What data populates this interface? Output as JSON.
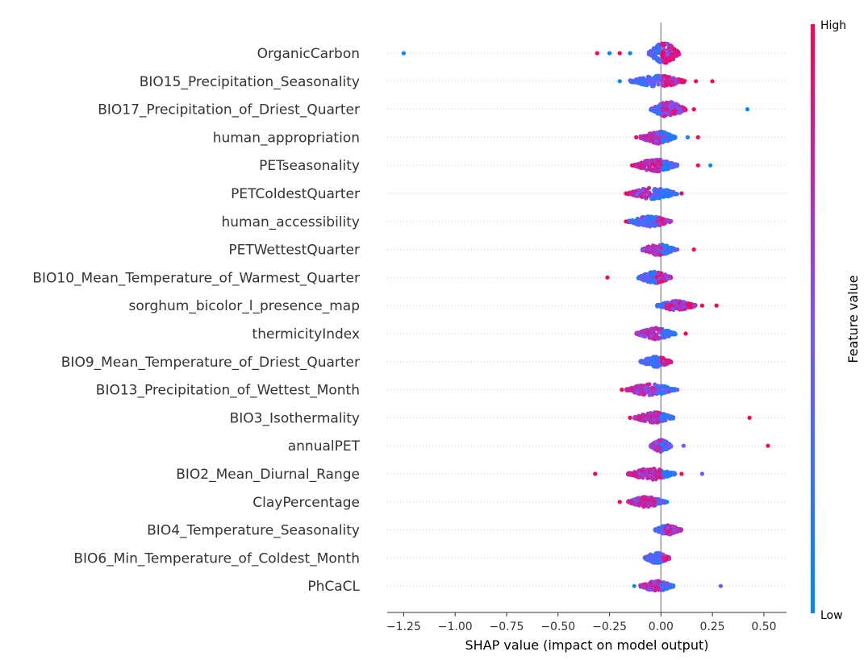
{
  "chart_data": {
    "type": "scatter",
    "subtype": "shap-beeswarm",
    "xlabel": "SHAP value (impact on model output)",
    "xlim": [
      -1.33,
      0.61
    ],
    "xticks": [
      -1.25,
      -1.0,
      -0.75,
      -0.5,
      -0.25,
      0.0,
      0.25,
      0.5
    ],
    "xtick_labels": [
      "−1.25",
      "−1.00",
      "−0.75",
      "−0.50",
      "−0.25",
      "0.00",
      "0.25",
      "0.50"
    ],
    "colorbar": {
      "label": "Feature value",
      "high": "High",
      "low": "Low"
    },
    "colors": {
      "low": "#008afb",
      "high": "#ff0052",
      "zero_line": "#999999",
      "grid": "#cccccc"
    },
    "features": [
      {
        "name": "OrganicCarbon",
        "min": -0.06,
        "max": 0.09,
        "spread": 1.0,
        "split": 0.0,
        "lowSide": "left",
        "outliers": [
          [
            -1.25,
            0.0
          ],
          [
            -0.31,
            1.0
          ],
          [
            -0.25,
            0.0
          ],
          [
            -0.2,
            1.0
          ],
          [
            -0.15,
            0.0
          ]
        ]
      },
      {
        "name": "BIO15_Precipitation_Seasonality",
        "min": -0.15,
        "max": 0.12,
        "spread": 0.55,
        "split": 0.0,
        "lowSide": "left",
        "outliers": [
          [
            -0.2,
            0.0
          ],
          [
            0.17,
            1.0
          ],
          [
            0.25,
            1.0
          ]
        ]
      },
      {
        "name": "BIO17_Precipitation_of_Driest_Quarter",
        "min": -0.05,
        "max": 0.12,
        "spread": 0.75,
        "split": 0.0,
        "lowSide": "left",
        "outliers": [
          [
            0.16,
            1.0
          ],
          [
            0.42,
            0.0
          ]
        ]
      },
      {
        "name": "human_appropriation",
        "min": -0.1,
        "max": 0.07,
        "spread": 0.6,
        "split": 0.0,
        "lowSide": "right",
        "outliers": [
          [
            -0.12,
            1.0
          ],
          [
            0.13,
            0.1
          ],
          [
            0.18,
            1.0
          ]
        ]
      },
      {
        "name": "PETseasonality",
        "min": -0.13,
        "max": 0.08,
        "spread": 0.6,
        "split": 0.0,
        "lowSide": "right",
        "outliers": [
          [
            0.18,
            1.0
          ],
          [
            0.24,
            0.0
          ],
          [
            -0.14,
            1.0
          ]
        ]
      },
      {
        "name": "PETColdestQuarter",
        "min": -0.16,
        "max": 0.08,
        "spread": 0.55,
        "split": -0.05,
        "lowSide": "right",
        "outliers": [
          [
            -0.17,
            1.0
          ],
          [
            0.1,
            1.0
          ]
        ]
      },
      {
        "name": "human_accessibility",
        "min": -0.16,
        "max": 0.05,
        "spread": 0.5,
        "split": -0.02,
        "lowSide": "left",
        "outliers": [
          [
            -0.17,
            1.0
          ]
        ]
      },
      {
        "name": "PETWettestQuarter",
        "min": -0.09,
        "max": 0.07,
        "spread": 0.55,
        "split": 0.0,
        "lowSide": "right",
        "outliers": [
          [
            0.16,
            1.0
          ],
          [
            0.08,
            0.5
          ]
        ]
      },
      {
        "name": "BIO10_Mean_Temperature_of_Warmest_Quarter",
        "min": -0.11,
        "max": 0.05,
        "spread": 0.55,
        "split": -0.02,
        "lowSide": "left",
        "outliers": [
          [
            -0.26,
            1.0
          ]
        ]
      },
      {
        "name": "sorghum_bicolor_l_presence_map",
        "min": -0.02,
        "max": 0.17,
        "spread": 0.45,
        "split": 0.02,
        "lowSide": "left",
        "outliers": [
          [
            0.2,
            1.0
          ],
          [
            0.27,
            1.0
          ]
        ]
      },
      {
        "name": "thermicityIndex",
        "min": -0.12,
        "max": 0.07,
        "spread": 0.55,
        "split": 0.0,
        "lowSide": "right",
        "outliers": [
          [
            0.12,
            1.0
          ]
        ]
      },
      {
        "name": "BIO9_Mean_Temperature_of_Driest_Quarter",
        "min": -0.1,
        "max": 0.05,
        "spread": 0.5,
        "split": 0.0,
        "lowSide": "left",
        "outliers": []
      },
      {
        "name": "BIO13_Precipitation_of_Wettest_Month",
        "min": -0.17,
        "max": 0.07,
        "spread": 0.55,
        "split": -0.02,
        "lowSide": "right",
        "outliers": [
          [
            -0.19,
            1.0
          ],
          [
            0.08,
            0.5
          ]
        ]
      },
      {
        "name": "BIO3_Isothermality",
        "min": -0.13,
        "max": 0.06,
        "spread": 0.55,
        "split": 0.0,
        "lowSide": "right",
        "outliers": [
          [
            -0.15,
            1.0
          ],
          [
            0.43,
            1.0
          ]
        ]
      },
      {
        "name": "annualPET",
        "min": -0.05,
        "max": 0.05,
        "spread": 0.6,
        "split": 0.0,
        "lowSide": "right",
        "outliers": [
          [
            0.11,
            0.5
          ],
          [
            0.52,
            1.0
          ]
        ]
      },
      {
        "name": "BIO2_Mean_Diurnal_Range",
        "min": -0.16,
        "max": 0.07,
        "spread": 0.55,
        "split": 0.0,
        "lowSide": "right",
        "outliers": [
          [
            -0.32,
            1.0
          ],
          [
            0.1,
            1.0
          ],
          [
            0.2,
            0.5
          ]
        ]
      },
      {
        "name": "ClayPercentage",
        "min": -0.16,
        "max": 0.02,
        "spread": 0.5,
        "split": -0.02,
        "lowSide": "right",
        "outliers": [
          [
            -0.2,
            1.0
          ],
          [
            0.03,
            0.0
          ]
        ]
      },
      {
        "name": "BIO4_Temperature_Seasonality",
        "min": -0.03,
        "max": 0.1,
        "spread": 0.45,
        "split": 0.02,
        "lowSide": "left",
        "outliers": []
      },
      {
        "name": "BIO6_Min_Temperature_of_Coldest_Month",
        "min": -0.08,
        "max": 0.04,
        "spread": 0.5,
        "split": 0.0,
        "lowSide": "left",
        "outliers": []
      },
      {
        "name": "PhCaCL",
        "min": -0.1,
        "max": 0.06,
        "spread": 0.5,
        "split": 0.0,
        "lowSide": "right",
        "outliers": [
          [
            -0.13,
            0.0
          ],
          [
            0.29,
            0.5
          ]
        ]
      }
    ]
  }
}
